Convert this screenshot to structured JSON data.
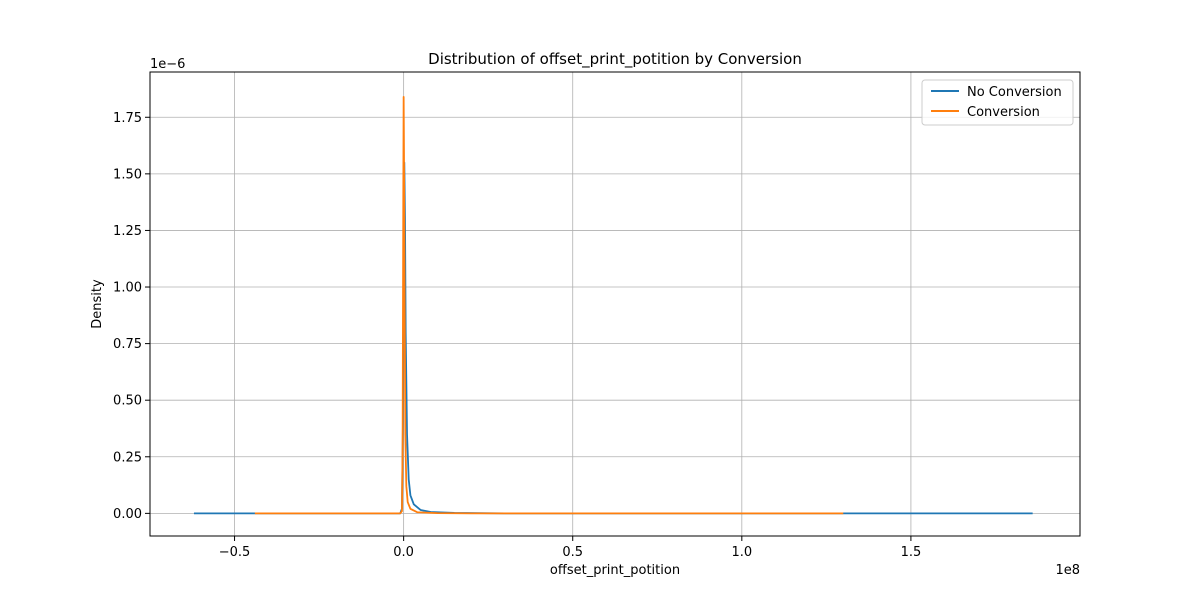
{
  "chart_data": {
    "type": "line",
    "title": "Distribution of offset_print_potition by Conversion",
    "xlabel": "offset_print_potition",
    "ylabel": "Density",
    "x_offset_label": "1e8",
    "y_offset_label": "1e−6",
    "x_scale": 100000000,
    "y_scale": 1e-06,
    "xlim": [
      -0.75,
      2.0
    ],
    "ylim": [
      -0.1,
      1.95
    ],
    "x_ticks": [
      -0.5,
      0.0,
      0.5,
      1.0,
      1.5
    ],
    "x_tick_labels": [
      "−0.5",
      "0.0",
      "0.5",
      "1.0",
      "1.5"
    ],
    "y_ticks": [
      0.0,
      0.25,
      0.5,
      0.75,
      1.0,
      1.25,
      1.5,
      1.75
    ],
    "y_tick_labels": [
      "0.00",
      "0.25",
      "0.50",
      "0.75",
      "1.00",
      "1.25",
      "1.50",
      "1.75"
    ],
    "grid": true,
    "legend_position": "top-right",
    "series": [
      {
        "name": "No Conversion",
        "color": "#1f77b4",
        "points": [
          [
            -0.62,
            0.0
          ],
          [
            -0.1,
            0.0
          ],
          [
            -0.01,
            0.0
          ],
          [
            -0.005,
            0.02
          ],
          [
            -0.002,
            0.4
          ],
          [
            0.0,
            1.2
          ],
          [
            0.002,
            1.55
          ],
          [
            0.004,
            1.3
          ],
          [
            0.006,
            0.8
          ],
          [
            0.01,
            0.35
          ],
          [
            0.015,
            0.15
          ],
          [
            0.02,
            0.08
          ],
          [
            0.03,
            0.04
          ],
          [
            0.05,
            0.015
          ],
          [
            0.08,
            0.006
          ],
          [
            0.15,
            0.002
          ],
          [
            0.3,
            0.0
          ],
          [
            1.86,
            0.0
          ]
        ]
      },
      {
        "name": "Conversion",
        "color": "#ff7f0e",
        "points": [
          [
            -0.44,
            0.0
          ],
          [
            -0.1,
            0.0
          ],
          [
            -0.01,
            0.0
          ],
          [
            -0.005,
            0.01
          ],
          [
            -0.003,
            0.3
          ],
          [
            -0.001,
            1.4
          ],
          [
            0.0,
            1.84
          ],
          [
            0.001,
            1.6
          ],
          [
            0.003,
            0.9
          ],
          [
            0.005,
            0.35
          ],
          [
            0.008,
            0.12
          ],
          [
            0.012,
            0.05
          ],
          [
            0.02,
            0.02
          ],
          [
            0.04,
            0.005
          ],
          [
            0.1,
            0.001
          ],
          [
            0.2,
            0.0
          ],
          [
            1.3,
            0.0
          ]
        ]
      }
    ]
  }
}
